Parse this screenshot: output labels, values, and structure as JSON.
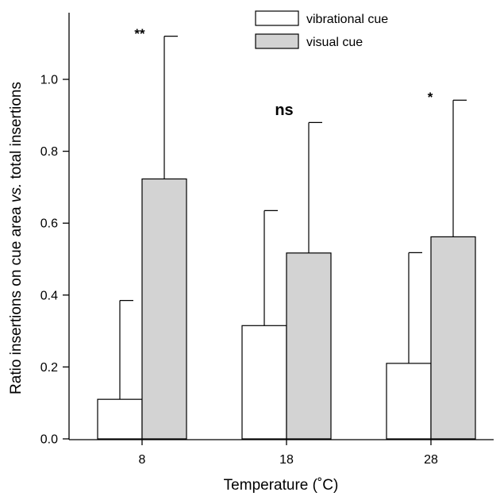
{
  "chart_data": {
    "type": "bar",
    "categories": [
      "8",
      "18",
      "28"
    ],
    "series": [
      {
        "name": "vibrational cue",
        "color": "#ffffff",
        "values": [
          0.11,
          0.315,
          0.21
        ],
        "error_upper": [
          0.385,
          0.635,
          0.518
        ]
      },
      {
        "name": "visual cue",
        "color": "#d3d3d3",
        "values": [
          0.723,
          0.517,
          0.562
        ],
        "error_upper": [
          1.12,
          0.88,
          0.942
        ]
      }
    ],
    "significance": [
      "**",
      "ns",
      "*"
    ],
    "xlabel": "Temperature (˚C)",
    "ylabel": {
      "prefix": "Ratio insertions on cue area ",
      "italic": "vs.",
      "suffix": " total insertions"
    },
    "ylim": [
      0,
      1.2
    ],
    "yticks": [
      "0.0",
      "0.2",
      "0.4",
      "0.6",
      "0.8",
      "1.0"
    ],
    "grid": false,
    "legend_position": "top-right"
  }
}
